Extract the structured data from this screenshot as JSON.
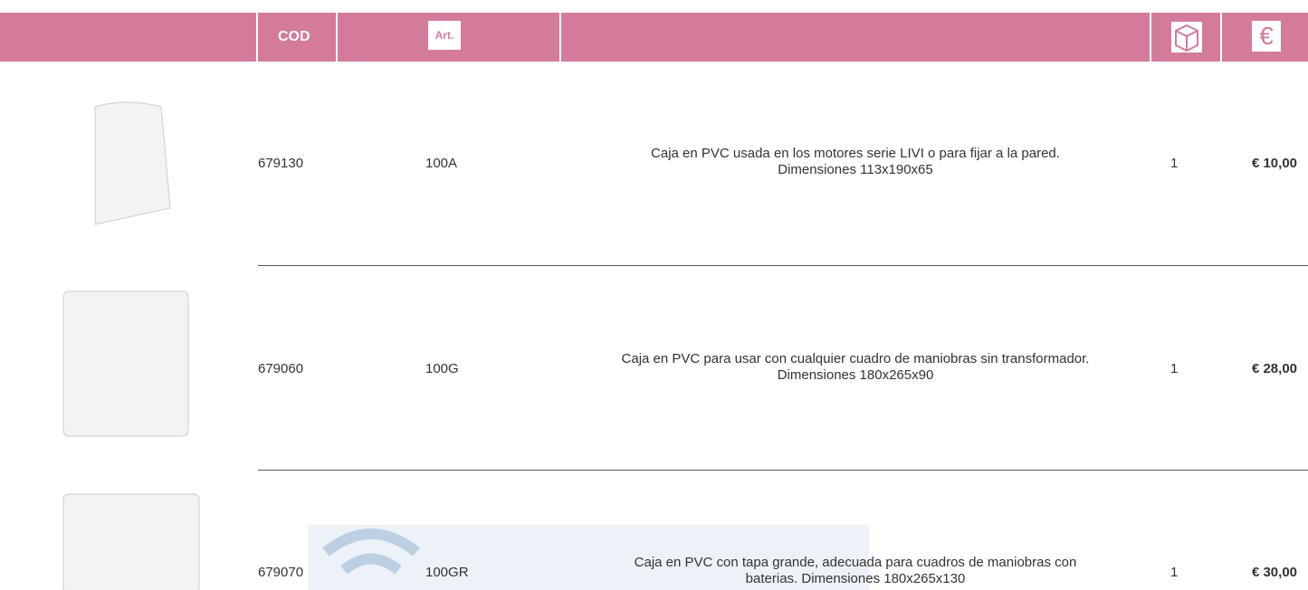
{
  "header": {
    "cod": "COD",
    "art": "Art.",
    "currency": "€"
  },
  "rows": [
    {
      "code": "679130",
      "art": "100A",
      "description": [
        "Caja en PVC usada en los motores serie LIVI o para fijar a la pared.",
        "Dimensiones 113x190x65"
      ],
      "qty": "1",
      "price": "€ 10,00"
    },
    {
      "code": "679060",
      "art": "100G",
      "description": [
        "Caja en PVC para usar con cualquier cuadro de maniobras sin transformador.",
        "Dimensiones 180x265x90"
      ],
      "qty": "1",
      "price": "€ 28,00"
    },
    {
      "code": "679070",
      "art": "100GR",
      "description": [
        "Caja en PVC con tapa grande, adecuada para cuadros de maniobras con",
        "baterias. Dimensiones 180x265x130"
      ],
      "qty": "1",
      "price": "€ 30,00"
    }
  ]
}
